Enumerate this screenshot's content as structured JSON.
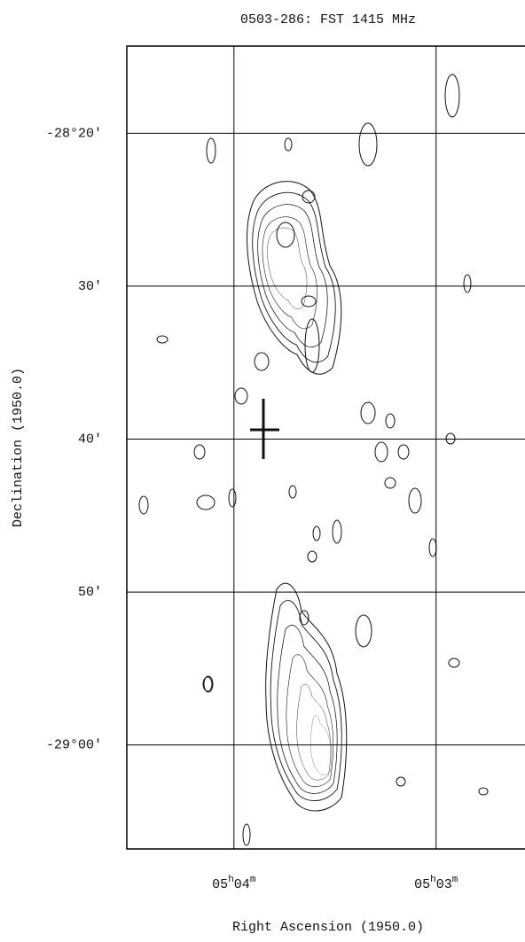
{
  "chart_data": {
    "type": "contour",
    "title": "0503-286:  FST 1415 MHz",
    "x_label": "Right Ascension (1950.0)",
    "y_label": "Declination (1950.0)",
    "xlim": [
      304.53,
      302.56
    ],
    "xticks": [
      {
        "value": 304,
        "label": "05h04m"
      },
      {
        "value": 303,
        "label": "05h03m"
      }
    ],
    "ylim": [
      -1746.8,
      -1694.3
    ],
    "yticks": [
      {
        "value": -1700,
        "label": "-28°20'"
      },
      {
        "value": -1710,
        "label": "30'"
      },
      {
        "value": -1720,
        "label": "40'"
      },
      {
        "value": -1730,
        "label": "50'"
      },
      {
        "value": -1740,
        "label": "-29°00'"
      }
    ],
    "grid": true,
    "color": "#000000"
  }
}
